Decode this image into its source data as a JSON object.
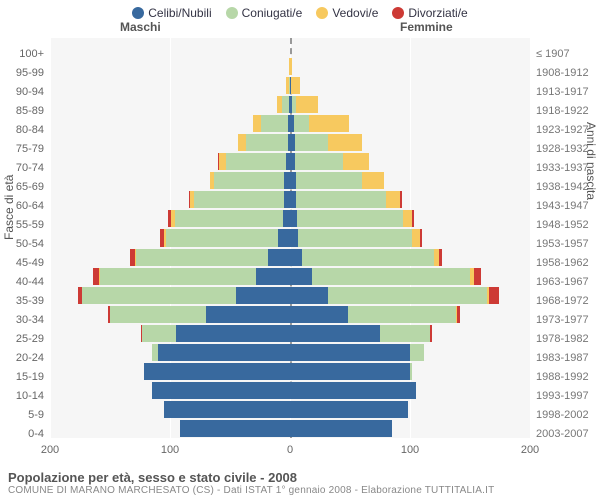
{
  "legend": [
    {
      "label": "Celibi/Nubili",
      "color": "#38699e"
    },
    {
      "label": "Coniugati/e",
      "color": "#b7d7a8"
    },
    {
      "label": "Vedovi/e",
      "color": "#f7c95f"
    },
    {
      "label": "Divorziati/e",
      "color": "#cd3a35"
    }
  ],
  "gender": {
    "male": "Maschi",
    "female": "Femmine"
  },
  "axis": {
    "left_title": "Fasce di età",
    "right_title": "Anni di nascita",
    "x_max": 200,
    "x_ticks": [
      -200,
      -100,
      0,
      100,
      200
    ],
    "x_tick_labels": [
      "200",
      "100",
      "0",
      "100",
      "200"
    ]
  },
  "colors": {
    "celibi": "#38699e",
    "coniugati": "#b7d7a8",
    "vedovi": "#f7c95f",
    "divorziati": "#cd3a35",
    "plot_bg": "#f6f6f6",
    "grid": "#ffffff",
    "center": "#999999"
  },
  "rows": [
    {
      "age": "100+",
      "year": "≤ 1907",
      "m": {
        "c": 0,
        "co": 0,
        "v": 0,
        "d": 0
      },
      "f": {
        "c": 0,
        "co": 0,
        "v": 0,
        "d": 0
      }
    },
    {
      "age": "95-99",
      "year": "1908-1912",
      "m": {
        "c": 0,
        "co": 0,
        "v": 1,
        "d": 0
      },
      "f": {
        "c": 0,
        "co": 0,
        "v": 2,
        "d": 0
      }
    },
    {
      "age": "90-94",
      "year": "1913-1917",
      "m": {
        "c": 0,
        "co": 1,
        "v": 2,
        "d": 0
      },
      "f": {
        "c": 1,
        "co": 0,
        "v": 7,
        "d": 0
      }
    },
    {
      "age": "85-89",
      "year": "1918-1922",
      "m": {
        "c": 1,
        "co": 6,
        "v": 4,
        "d": 0
      },
      "f": {
        "c": 2,
        "co": 3,
        "v": 18,
        "d": 0
      }
    },
    {
      "age": "80-84",
      "year": "1923-1927",
      "m": {
        "c": 2,
        "co": 22,
        "v": 7,
        "d": 0
      },
      "f": {
        "c": 3,
        "co": 13,
        "v": 33,
        "d": 0
      }
    },
    {
      "age": "75-79",
      "year": "1928-1932",
      "m": {
        "c": 2,
        "co": 35,
        "v": 6,
        "d": 0
      },
      "f": {
        "c": 4,
        "co": 28,
        "v": 28,
        "d": 0
      }
    },
    {
      "age": "70-74",
      "year": "1933-1937",
      "m": {
        "c": 3,
        "co": 50,
        "v": 6,
        "d": 1
      },
      "f": {
        "c": 4,
        "co": 40,
        "v": 22,
        "d": 0
      }
    },
    {
      "age": "65-69",
      "year": "1938-1942",
      "m": {
        "c": 5,
        "co": 58,
        "v": 4,
        "d": 0
      },
      "f": {
        "c": 5,
        "co": 55,
        "v": 18,
        "d": 0
      }
    },
    {
      "age": "60-64",
      "year": "1943-1947",
      "m": {
        "c": 5,
        "co": 75,
        "v": 3,
        "d": 1
      },
      "f": {
        "c": 5,
        "co": 75,
        "v": 12,
        "d": 1
      }
    },
    {
      "age": "55-59",
      "year": "1948-1952",
      "m": {
        "c": 6,
        "co": 90,
        "v": 3,
        "d": 3
      },
      "f": {
        "c": 6,
        "co": 88,
        "v": 8,
        "d": 1
      }
    },
    {
      "age": "50-54",
      "year": "1953-1957",
      "m": {
        "c": 10,
        "co": 93,
        "v": 2,
        "d": 3
      },
      "f": {
        "c": 7,
        "co": 95,
        "v": 6,
        "d": 2
      }
    },
    {
      "age": "45-49",
      "year": "1958-1962",
      "m": {
        "c": 18,
        "co": 110,
        "v": 1,
        "d": 4
      },
      "f": {
        "c": 10,
        "co": 110,
        "v": 4,
        "d": 3
      }
    },
    {
      "age": "40-44",
      "year": "1963-1967",
      "m": {
        "c": 28,
        "co": 130,
        "v": 1,
        "d": 5
      },
      "f": {
        "c": 18,
        "co": 132,
        "v": 3,
        "d": 6
      }
    },
    {
      "age": "35-39",
      "year": "1968-1972",
      "m": {
        "c": 45,
        "co": 128,
        "v": 0,
        "d": 4
      },
      "f": {
        "c": 32,
        "co": 132,
        "v": 2,
        "d": 8
      }
    },
    {
      "age": "30-34",
      "year": "1973-1977",
      "m": {
        "c": 70,
        "co": 80,
        "v": 0,
        "d": 2
      },
      "f": {
        "c": 48,
        "co": 90,
        "v": 1,
        "d": 3
      }
    },
    {
      "age": "25-29",
      "year": "1978-1982",
      "m": {
        "c": 95,
        "co": 28,
        "v": 0,
        "d": 1
      },
      "f": {
        "c": 75,
        "co": 42,
        "v": 0,
        "d": 1
      }
    },
    {
      "age": "20-24",
      "year": "1983-1987",
      "m": {
        "c": 110,
        "co": 5,
        "v": 0,
        "d": 0
      },
      "f": {
        "c": 100,
        "co": 12,
        "v": 0,
        "d": 0
      }
    },
    {
      "age": "15-19",
      "year": "1988-1992",
      "m": {
        "c": 122,
        "co": 0,
        "v": 0,
        "d": 0
      },
      "f": {
        "c": 100,
        "co": 2,
        "v": 0,
        "d": 0
      }
    },
    {
      "age": "10-14",
      "year": "1993-1997",
      "m": {
        "c": 115,
        "co": 0,
        "v": 0,
        "d": 0
      },
      "f": {
        "c": 105,
        "co": 0,
        "v": 0,
        "d": 0
      }
    },
    {
      "age": "5-9",
      "year": "1998-2002",
      "m": {
        "c": 105,
        "co": 0,
        "v": 0,
        "d": 0
      },
      "f": {
        "c": 98,
        "co": 0,
        "v": 0,
        "d": 0
      }
    },
    {
      "age": "0-4",
      "year": "2003-2007",
      "m": {
        "c": 92,
        "co": 0,
        "v": 0,
        "d": 0
      },
      "f": {
        "c": 85,
        "co": 0,
        "v": 0,
        "d": 0
      }
    }
  ],
  "footer": {
    "title": "Popolazione per età, sesso e stato civile - 2008",
    "subtitle": "COMUNE DI MARANO MARCHESATO (CS) - Dati ISTAT 1° gennaio 2008 - Elaborazione TUTTITALIA.IT"
  }
}
